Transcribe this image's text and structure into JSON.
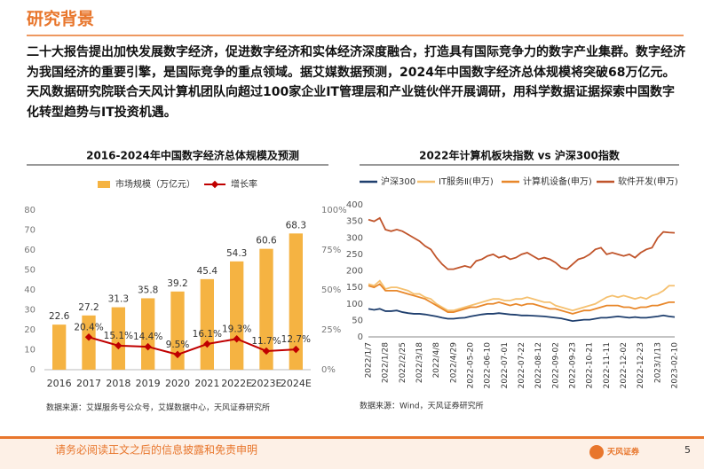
{
  "header": {
    "title": "研究背景"
  },
  "paragraph": "二十大报告提出加快发展数字经济，促进数字经济和实体经济深度融合，打造具有国际竞争力的数字产业集群。数字经济为我国经济的重要引擎，是国际竞争的重点领域。据艾媒数据预测，2024年中国数字经济总体规模将突破68万亿元。天风数据研究院联合天风计算机团队向超过100家企业IT管理层和产业链伙伴开展调研，用科学数据证据探索中国数字化转型趋势与IT投资机遇。",
  "chart_data": [
    {
      "type": "bar",
      "title": "2016-2024年中国数字经济总体规模及预测",
      "categories": [
        "2016",
        "2017",
        "2018",
        "2019",
        "2020",
        "2021",
        "2022E",
        "2023E",
        "2024E"
      ],
      "series": [
        {
          "name": "市场规模（万亿元）",
          "color": "#f5b342",
          "values": [
            22.6,
            27.2,
            31.3,
            35.8,
            39.2,
            45.4,
            54.3,
            60.6,
            68.3
          ]
        },
        {
          "name": "增长率",
          "type": "line",
          "axis": "y2",
          "color": "#c00000",
          "values": [
            null,
            20.4,
            15.1,
            14.4,
            9.5,
            16.1,
            19.3,
            11.7,
            12.7
          ],
          "value_labels": [
            null,
            "20.4%",
            "15.1%",
            "14.4%",
            "9.5%",
            "16.1%",
            "19.3%",
            "11.7%",
            "12.7%"
          ]
        }
      ],
      "ylim": [
        0,
        80
      ],
      "yticks": [
        0,
        10,
        20,
        30,
        40,
        50,
        60,
        70,
        80
      ],
      "y2lim": [
        0,
        100
      ],
      "y2ticks": [
        {
          "value": 0,
          "label": "0%"
        },
        {
          "value": 25,
          "label": "25%"
        },
        {
          "value": 50,
          "label": "50%"
        },
        {
          "value": 75,
          "label": "75%"
        },
        {
          "value": 100,
          "label": "100%"
        }
      ],
      "source": "数据来源：艾媒服务号公众号，艾媒数据中心，天风证券研究所"
    },
    {
      "type": "line",
      "title": "2022年计算机板块指数 vs 沪深300指数",
      "categories": [
        "2022/1/7",
        null,
        null,
        "2022/1/28",
        null,
        null,
        "2022/2/25",
        null,
        null,
        "2022/3/18",
        null,
        null,
        "2022/4/8",
        null,
        null,
        "2022/4/29",
        null,
        null,
        "2022-05-20",
        null,
        null,
        "2022-06-10",
        null,
        null,
        "2022-07-01",
        null,
        null,
        "2022-07-22",
        null,
        null,
        "2022-08-12",
        null,
        null,
        "2022-09-02",
        null,
        null,
        "2022-09-23",
        null,
        null,
        "2022-10-21",
        null,
        null,
        "2022-11-11",
        null,
        null,
        "2022-12-02",
        null,
        null,
        "2022-12-23",
        null,
        null,
        "2023/1/13",
        null,
        null,
        "2023-02-10"
      ],
      "series": [
        {
          "name": "沪深300",
          "color": "#1f3f6e",
          "values": [
            85,
            82,
            85,
            78,
            78,
            80,
            75,
            72,
            70,
            70,
            68,
            65,
            62,
            58,
            55,
            55,
            57,
            58,
            62,
            65,
            68,
            70,
            70,
            72,
            70,
            68,
            67,
            65,
            65,
            64,
            63,
            62,
            60,
            58,
            56,
            52,
            48,
            50,
            52,
            52,
            55,
            58,
            58,
            60,
            62,
            60,
            58,
            60,
            58,
            58,
            60,
            62,
            65,
            62,
            60
          ]
        },
        {
          "name": "IT服务Ⅱ(申万)",
          "color": "#f5c06f",
          "values": [
            160,
            155,
            170,
            145,
            150,
            150,
            145,
            140,
            130,
            130,
            120,
            115,
            100,
            90,
            80,
            80,
            85,
            90,
            95,
            100,
            105,
            110,
            115,
            115,
            110,
            110,
            115,
            115,
            120,
            115,
            110,
            105,
            105,
            95,
            90,
            85,
            80,
            85,
            90,
            95,
            100,
            110,
            120,
            125,
            120,
            125,
            120,
            115,
            120,
            115,
            125,
            130,
            140,
            155,
            155
          ]
        },
        {
          "name": "计算机设备(申万)",
          "color": "#e8872a",
          "values": [
            155,
            150,
            160,
            140,
            140,
            140,
            135,
            130,
            125,
            120,
            115,
            105,
            95,
            85,
            75,
            75,
            80,
            85,
            90,
            90,
            95,
            100,
            100,
            105,
            100,
            95,
            100,
            95,
            100,
            100,
            95,
            90,
            85,
            85,
            80,
            75,
            70,
            75,
            80,
            80,
            85,
            90,
            95,
            95,
            95,
            90,
            90,
            85,
            90,
            90,
            95,
            95,
            100,
            105,
            105
          ]
        },
        {
          "name": "软件开发(申万)",
          "color": "#c0542a",
          "values": [
            355,
            350,
            360,
            325,
            320,
            325,
            320,
            310,
            300,
            290,
            275,
            265,
            240,
            220,
            205,
            205,
            210,
            215,
            210,
            230,
            235,
            245,
            250,
            240,
            245,
            235,
            240,
            250,
            255,
            245,
            235,
            240,
            235,
            225,
            210,
            205,
            220,
            235,
            240,
            250,
            265,
            270,
            250,
            255,
            250,
            245,
            250,
            240,
            255,
            265,
            270,
            300,
            318,
            316,
            315
          ]
        }
      ],
      "ylim": [
        0,
        400
      ],
      "yticks": [
        0,
        50,
        100,
        150,
        200,
        250,
        300,
        350,
        400
      ],
      "source": "数据来源：Wind，天风证券研究所"
    }
  ],
  "footer": {
    "disclaimer": "请务必阅读正文之后的信息披露和免责申明",
    "logo": "天风证券",
    "page": "5"
  }
}
